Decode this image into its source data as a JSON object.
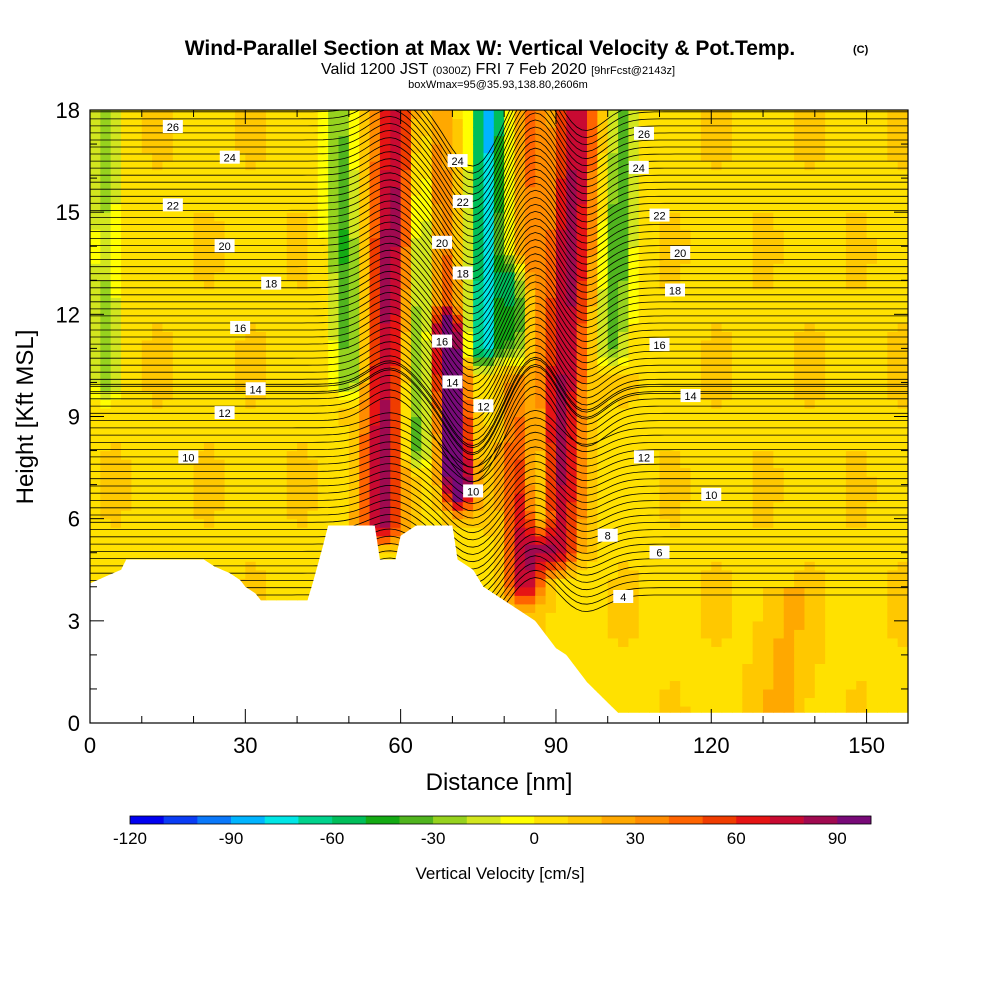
{
  "chart_data": {
    "type": "heatmap",
    "title": "Wind-Parallel Section at Max W: Vertical Velocity & Pot.Temp.",
    "title_mark": "(C)",
    "subtitle": {
      "valid": "Valid 1200 JST",
      "utc": "(0300Z)",
      "date": "FRI 7 Feb 2020",
      "forecast": "[9hrFcst@2143z]"
    },
    "note": "boxWmax=95@35.93,138.80,2606m",
    "xlabel": "Distance [nm]",
    "ylabel": "Height [Kft MSL]",
    "xlim": [
      0,
      158
    ],
    "ylim": [
      0,
      18
    ],
    "x_ticks": [
      0,
      30,
      60,
      90,
      120,
      150
    ],
    "y_ticks": [
      0,
      3,
      6,
      9,
      12,
      15,
      18
    ],
    "colorbar": {
      "label": "Vertical Velocity [cm/s]",
      "min": -120,
      "max": 100,
      "step": 10,
      "ticks": [
        -120,
        -90,
        -60,
        -30,
        0,
        30,
        60,
        90
      ],
      "colors": [
        "#0000f0",
        "#0a3cf5",
        "#0a78fa",
        "#00b4ff",
        "#00e6e6",
        "#00d28c",
        "#00be5a",
        "#14aa14",
        "#50b41e",
        "#96d21e",
        "#d2e61e",
        "#ffff00",
        "#ffe100",
        "#ffc800",
        "#ffa800",
        "#ff8c00",
        "#ff6400",
        "#f03c00",
        "#e61414",
        "#c80a32",
        "#a00a50",
        "#780a78"
      ]
    },
    "vertical_velocity_features": [
      {
        "x": 56,
        "z_bottom": 5.8,
        "z_top": 18,
        "tilt": 3,
        "width": 4,
        "w": 75
      },
      {
        "x": 71,
        "z_bottom": 7.0,
        "z_top": 11.5,
        "tilt": -2,
        "width": 2.5,
        "w": 95
      },
      {
        "x": 71,
        "z_bottom": 6.5,
        "z_top": 18,
        "tilt": -5,
        "width": 3,
        "w": 45
      },
      {
        "x": 76,
        "z_bottom": 11,
        "z_top": 18,
        "tilt": 1,
        "width": 3,
        "w": -85
      },
      {
        "x": 84,
        "z_bottom": 4.0,
        "z_top": 18,
        "tilt": -1,
        "width": 3.5,
        "w": 70
      },
      {
        "x": 90,
        "z_bottom": 5.0,
        "z_top": 18,
        "tilt": 4,
        "width": 4,
        "w": 75
      },
      {
        "x": 87,
        "z_bottom": 6.0,
        "z_top": 13,
        "tilt": -5,
        "width": 3,
        "w": -55
      },
      {
        "x": 82,
        "z_bottom": 11,
        "z_top": 18,
        "tilt": 0,
        "width": 3,
        "w": -60
      },
      {
        "x": 50,
        "z_bottom": 10,
        "z_top": 18,
        "tilt": -2,
        "width": 3,
        "w": -45
      },
      {
        "x": 63,
        "z_bottom": 8,
        "z_top": 18,
        "tilt": 2,
        "width": 3,
        "w": -45
      },
      {
        "x": 101,
        "z_bottom": 11,
        "z_top": 18,
        "tilt": 2,
        "width": 3,
        "w": -45
      },
      {
        "x": 3,
        "z_bottom": 10,
        "z_top": 18,
        "tilt": 0,
        "width": 3,
        "w": -30
      }
    ],
    "theta_contours": {
      "levels": [
        4,
        6,
        8,
        10,
        12,
        14,
        16,
        18,
        20,
        22,
        24,
        26
      ],
      "labels": [
        {
          "text": "26",
          "x": 16,
          "z": 17.5
        },
        {
          "text": "26",
          "x": 107,
          "z": 17.3
        },
        {
          "text": "24",
          "x": 27,
          "z": 16.6
        },
        {
          "text": "24",
          "x": 71,
          "z": 16.5
        },
        {
          "text": "24",
          "x": 106,
          "z": 16.3
        },
        {
          "text": "22",
          "x": 16,
          "z": 15.2
        },
        {
          "text": "22",
          "x": 72,
          "z": 15.3
        },
        {
          "text": "22",
          "x": 110,
          "z": 14.9
        },
        {
          "text": "20",
          "x": 26,
          "z": 14.0
        },
        {
          "text": "20",
          "x": 68,
          "z": 14.1
        },
        {
          "text": "20",
          "x": 114,
          "z": 13.8
        },
        {
          "text": "18",
          "x": 35,
          "z": 12.9
        },
        {
          "text": "18",
          "x": 72,
          "z": 13.2
        },
        {
          "text": "18",
          "x": 113,
          "z": 12.7
        },
        {
          "text": "16",
          "x": 29,
          "z": 11.6
        },
        {
          "text": "16",
          "x": 68,
          "z": 11.2
        },
        {
          "text": "16",
          "x": 110,
          "z": 11.1
        },
        {
          "text": "14",
          "x": 32,
          "z": 9.8
        },
        {
          "text": "14",
          "x": 70,
          "z": 10.0
        },
        {
          "text": "14",
          "x": 116,
          "z": 9.6
        },
        {
          "text": "12",
          "x": 26,
          "z": 9.1
        },
        {
          "text": "12",
          "x": 76,
          "z": 9.3
        },
        {
          "text": "12",
          "x": 107,
          "z": 7.8
        },
        {
          "text": "10",
          "x": 19,
          "z": 7.8
        },
        {
          "text": "10",
          "x": 74,
          "z": 6.8
        },
        {
          "text": "10",
          "x": 120,
          "z": 6.7
        },
        {
          "text": "8",
          "x": 100,
          "z": 5.5
        },
        {
          "text": "6",
          "x": 110,
          "z": 5.0
        },
        {
          "text": "4",
          "x": 103,
          "z": 3.7
        }
      ]
    },
    "terrain_kft": [
      [
        0,
        4.1
      ],
      [
        3,
        4.3
      ],
      [
        6,
        4.5
      ],
      [
        7,
        4.8
      ],
      [
        22,
        4.8
      ],
      [
        24,
        4.6
      ],
      [
        27,
        4.4
      ],
      [
        29,
        4.2
      ],
      [
        30,
        4.0
      ],
      [
        32,
        3.8
      ],
      [
        33,
        3.6
      ],
      [
        42,
        3.6
      ],
      [
        43,
        4.1
      ],
      [
        45,
        5.2
      ],
      [
        46,
        5.8
      ],
      [
        55,
        5.8
      ],
      [
        56,
        4.8
      ],
      [
        59,
        4.8
      ],
      [
        60,
        5.5
      ],
      [
        63,
        5.8
      ],
      [
        70,
        5.8
      ],
      [
        71,
        4.8
      ],
      [
        74,
        4.5
      ],
      [
        76,
        4.0
      ],
      [
        78,
        3.8
      ],
      [
        80,
        3.6
      ],
      [
        82,
        3.4
      ],
      [
        84,
        3.2
      ],
      [
        86,
        3.0
      ],
      [
        88,
        2.6
      ],
      [
        90,
        2.2
      ],
      [
        92,
        2.0
      ],
      [
        94,
        1.6
      ],
      [
        96,
        1.2
      ],
      [
        98,
        0.9
      ],
      [
        100,
        0.6
      ],
      [
        102,
        0.3
      ],
      [
        104,
        0.3
      ],
      [
        158,
        0.3
      ]
    ]
  }
}
